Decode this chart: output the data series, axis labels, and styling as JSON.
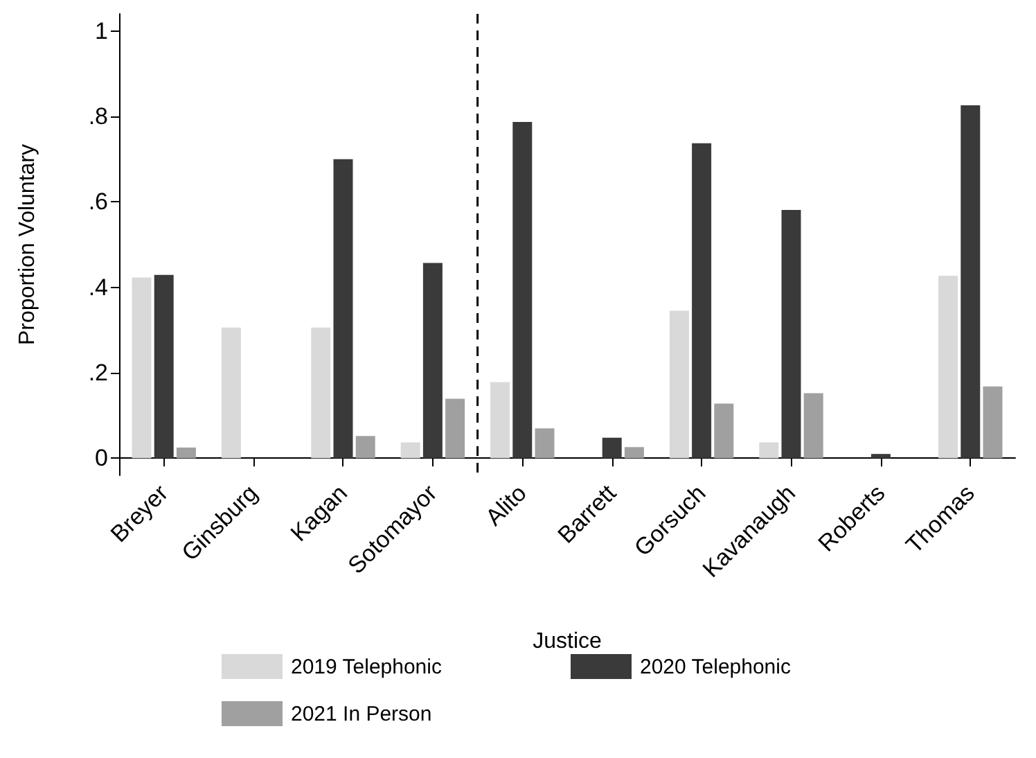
{
  "chart_data": {
    "type": "bar",
    "xlabel": "Justice",
    "ylabel": "Proportion Voluntary",
    "categories": [
      "Breyer",
      "Ginsburg",
      "Kagan",
      "Sotomayor",
      "Alito",
      "Barrett",
      "Gorsuch",
      "Kavanaugh",
      "Roberts",
      "Thomas"
    ],
    "series": [
      {
        "name": "2019 Telephonic",
        "color": "#d9d9d9",
        "values": [
          0.423,
          0.306,
          0.306,
          0.037,
          0.178,
          null,
          0.345,
          0.037,
          null,
          0.427
        ]
      },
      {
        "name": "2020 Telephonic",
        "color": "#3a3a3a",
        "values": [
          0.429,
          null,
          0.7,
          0.457,
          0.787,
          0.048,
          0.737,
          0.581,
          0.01,
          0.826
        ]
      },
      {
        "name": "2021 In Person",
        "color": "#a0a0a0",
        "values": [
          0.025,
          null,
          0.052,
          0.139,
          0.07,
          0.026,
          0.128,
          0.152,
          null,
          0.168
        ]
      }
    ],
    "ylim": [
      -0.04,
      1.04
    ],
    "yticks": [
      0,
      {
        "value": 0.2,
        "label": ".2"
      },
      {
        "value": 0.4,
        "label": ".4"
      },
      {
        "value": 0.6,
        "label": ".6"
      },
      {
        "value": 0.8,
        "label": ".8"
      },
      1
    ],
    "grid": false,
    "legend": "bottom"
  }
}
